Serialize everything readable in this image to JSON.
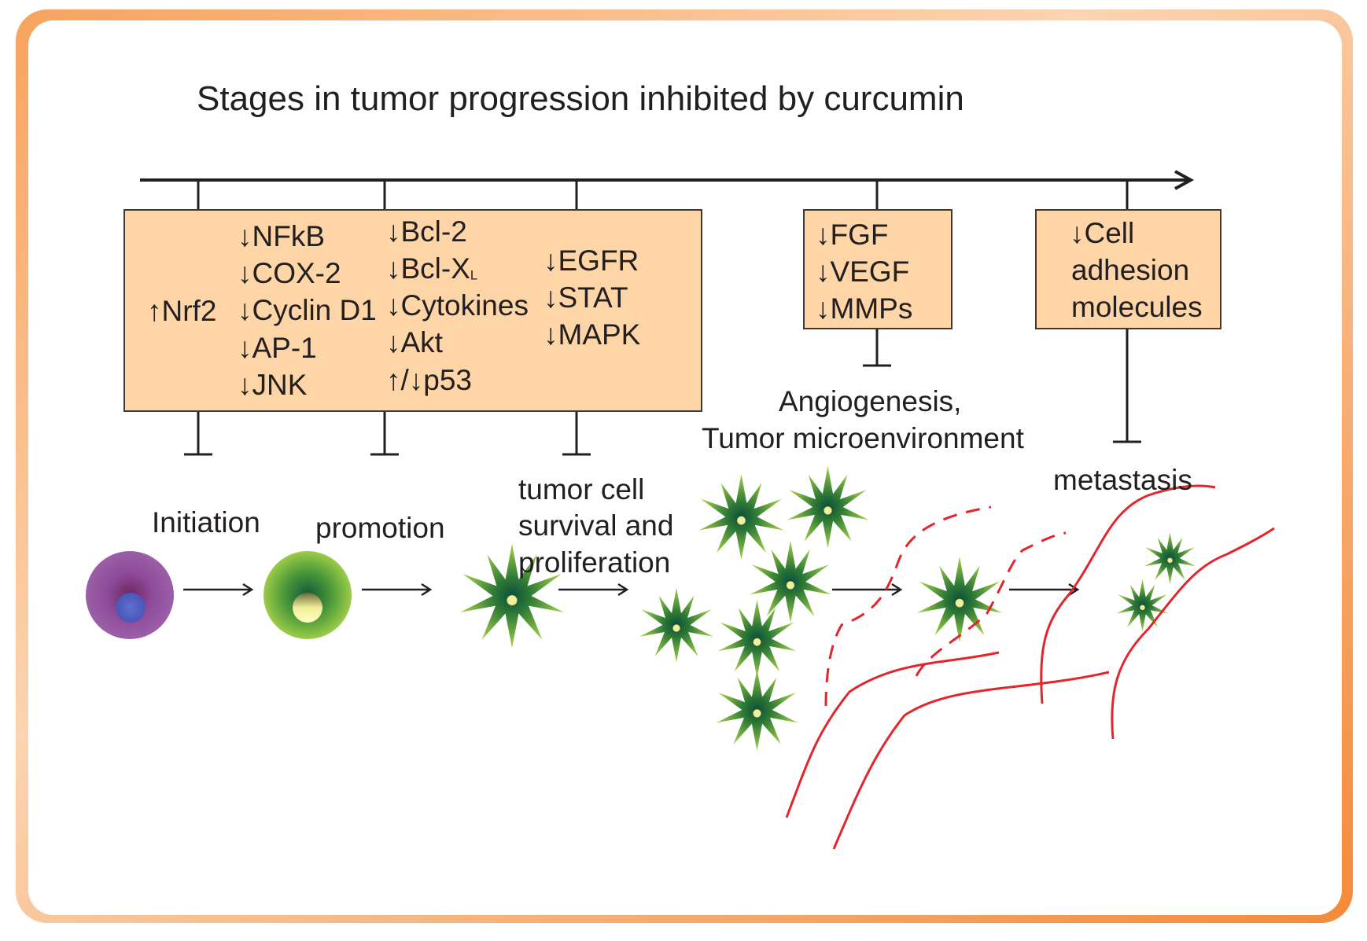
{
  "title": "Stages in tumor progression inhibited by curcumin",
  "boxes": {
    "main": {
      "col1": [
        "↑Nrf2"
      ],
      "col2": [
        "↓NFkB",
        "↓COX-2",
        "↓Cyclin D1",
        "↓AP-1",
        "↓JNK"
      ],
      "col3_line1": "↓Bcl-2",
      "col3_bclx_prefix": "↓Bcl-X",
      "col3_bclx_sub": "L",
      "col3_rest": [
        "↓Cytokines",
        "↓Akt",
        "↑/↓p53"
      ],
      "col4": [
        "↓EGFR",
        "↓STAT",
        "↓MAPK"
      ]
    },
    "angio": [
      "↓FGF",
      "↓VEGF",
      "↓MMPs"
    ],
    "metastasis": [
      "↓Cell",
      "adhesion",
      "molecules"
    ]
  },
  "stages": {
    "initiation": "Initiation",
    "promotion": "promotion",
    "survival": [
      "tumor cell",
      "survival and",
      "proliferation"
    ],
    "angiogenesis": [
      "Angiogenesis,",
      "Tumor microenvironment"
    ],
    "metastasis": "metastasis"
  },
  "colors": {
    "frame_orange": "#f58a3a",
    "box_fill": "#fdd5a6",
    "vessel_red": "#e3262c",
    "cell_green": "#8dc63f",
    "cell_purple": "#8e4a99"
  }
}
